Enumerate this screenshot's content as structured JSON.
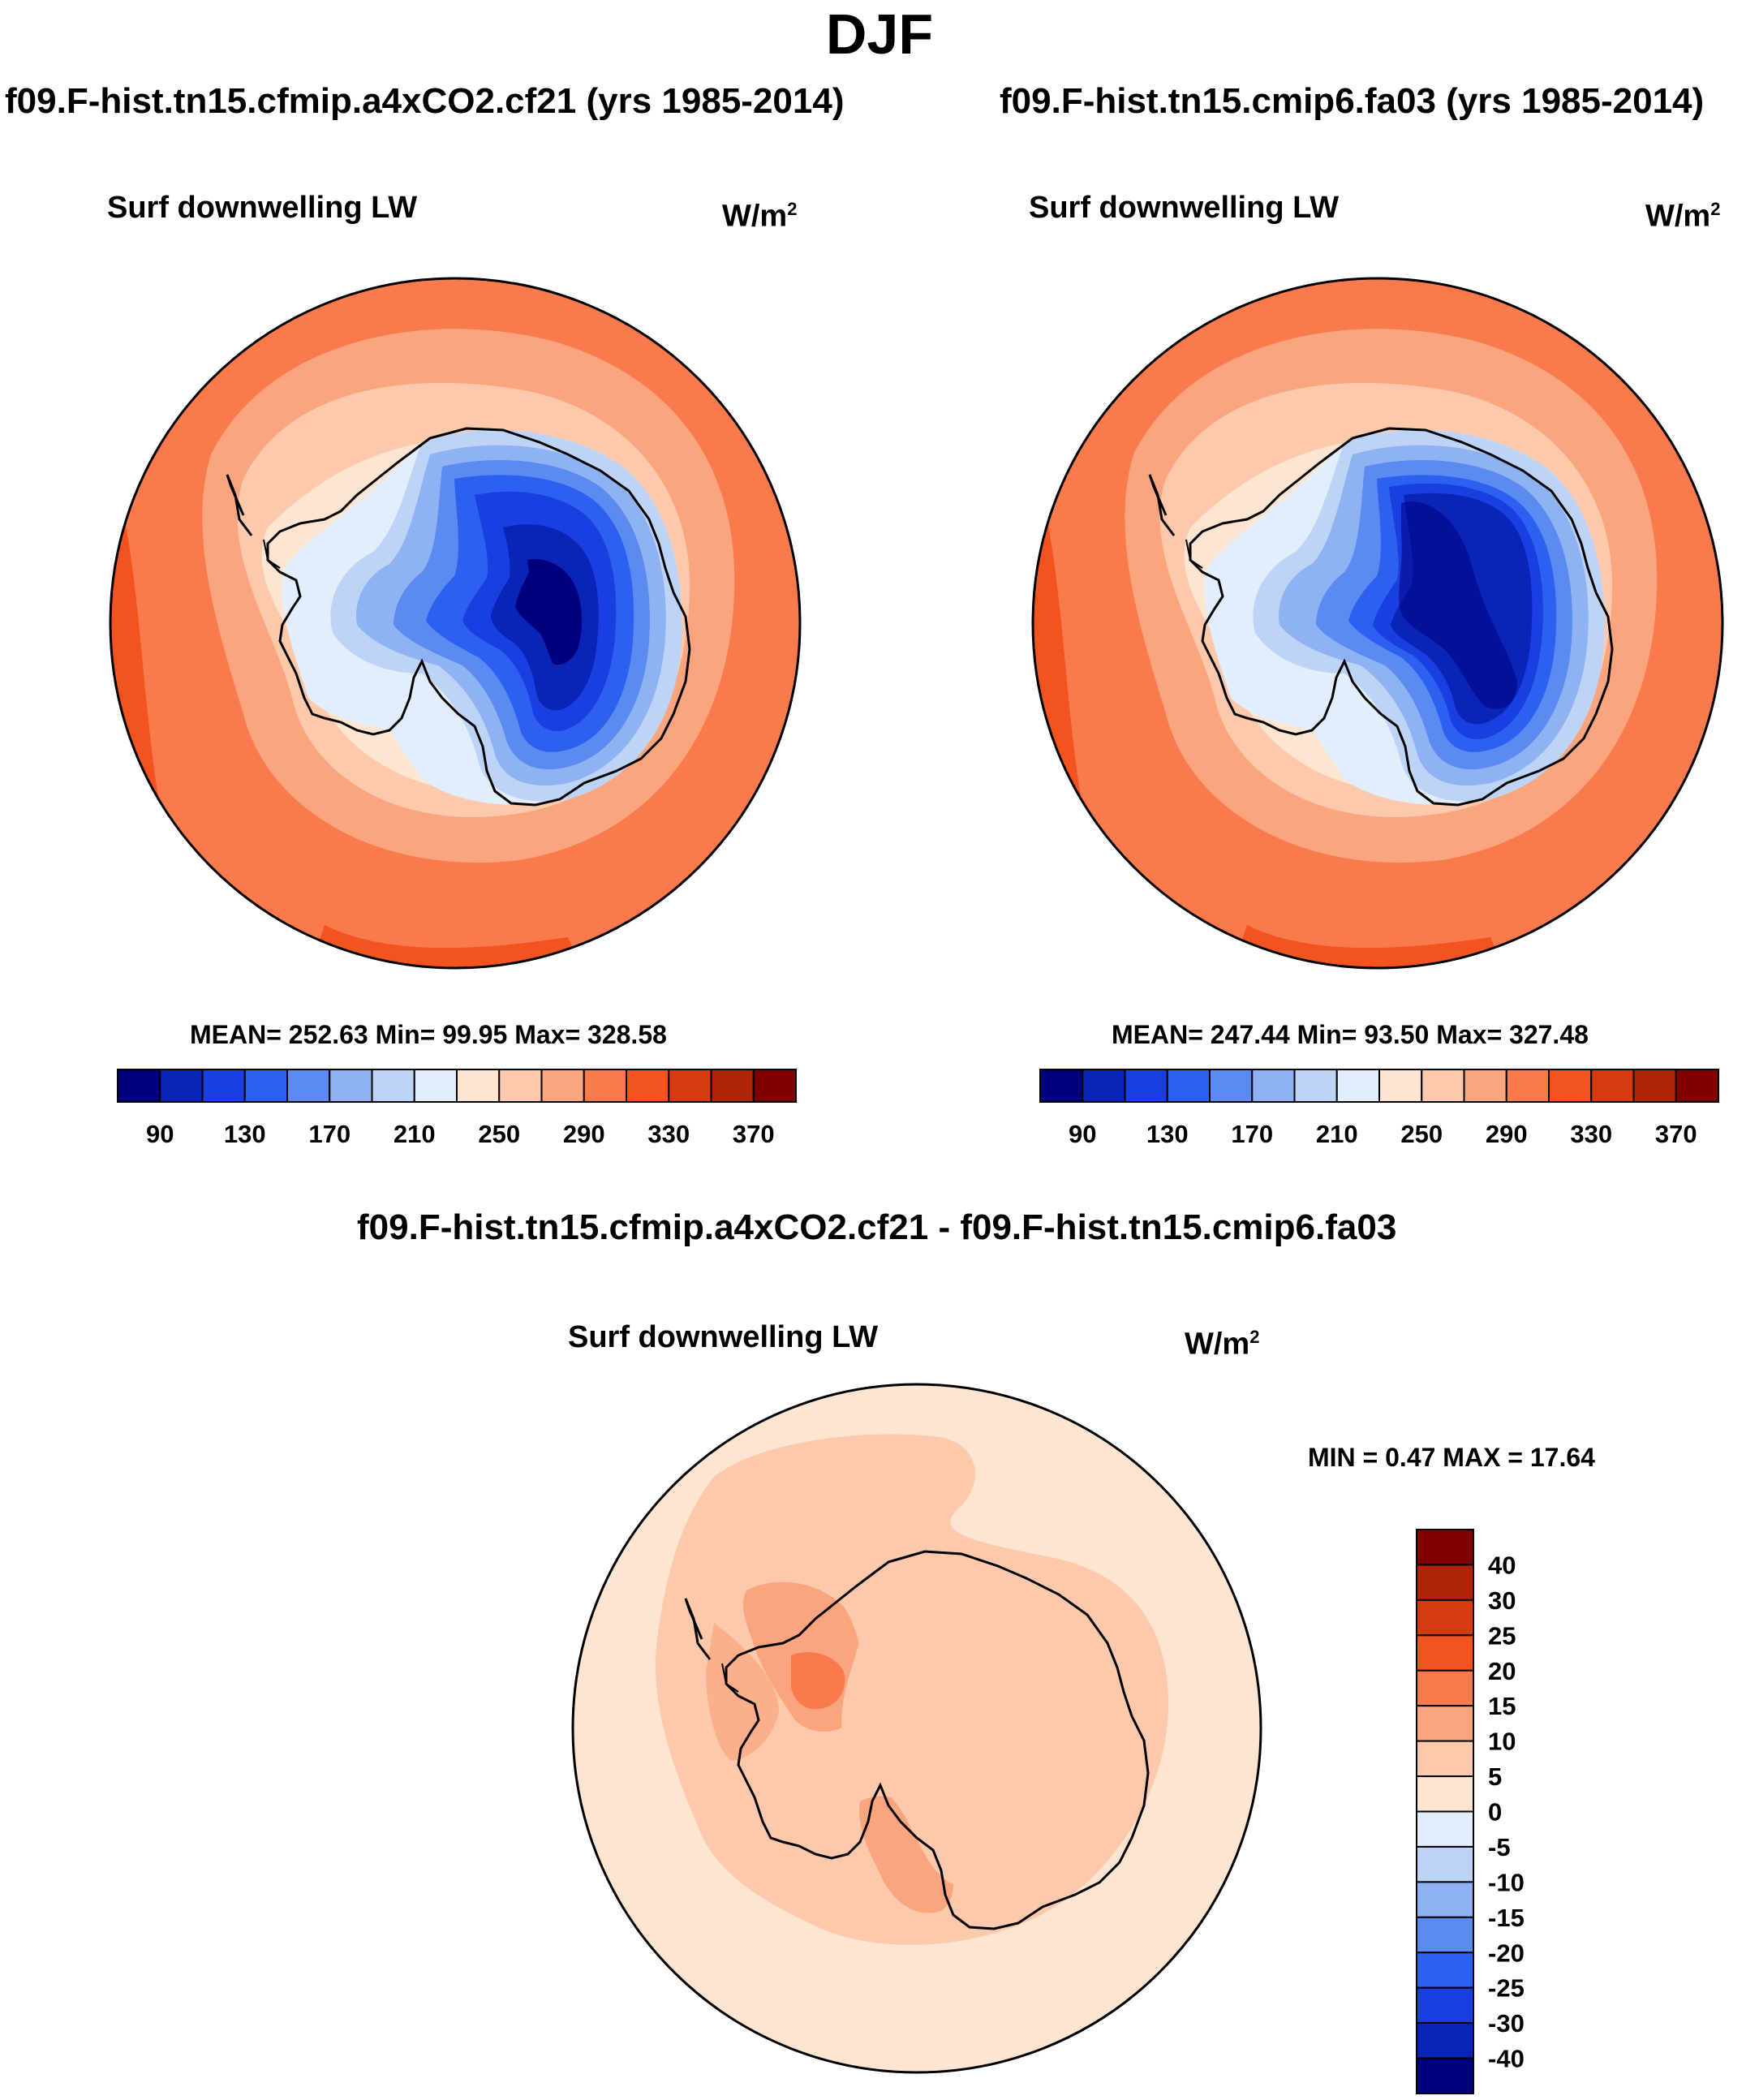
{
  "title": "DJF",
  "panels": [
    {
      "case_title": "f09.F-hist.tn15.cfmip.a4xCO2.cf21 (yrs 1985-2014)",
      "variable": "Surf downwelling LW",
      "units": {
        "base": "W/m",
        "exp": "2"
      },
      "stats": "MEAN= 252.63  Min=  99.95  Max= 328.58",
      "colorbar_labels": [
        "90",
        "130",
        "170",
        "210",
        "250",
        "290",
        "330",
        "370"
      ]
    },
    {
      "case_title": "f09.F-hist.tn15.cmip6.fa03 (yrs 1985-2014)",
      "variable": "Surf downwelling LW",
      "units": {
        "base": "W/m",
        "exp": "2"
      },
      "stats": "MEAN= 247.44  Min=  93.50  Max= 327.48",
      "colorbar_labels": [
        "90",
        "130",
        "170",
        "210",
        "250",
        "290",
        "330",
        "370"
      ]
    }
  ],
  "difference": {
    "title": "f09.F-hist.tn15.cfmip.a4xCO2.cf21 - f09.F-hist.tn15.cmip6.fa03",
    "variable": "Surf downwelling LW",
    "units": {
      "base": "W/m",
      "exp": "2"
    },
    "stats": "MIN =   0.47 MAX =  17.64",
    "colorbar_labels": [
      "40",
      "30",
      "25",
      "20",
      "15",
      "10",
      "5",
      "0",
      "-5",
      "-10",
      "-15",
      "-20",
      "-25",
      "-30",
      "-40"
    ]
  },
  "colors": {
    "abs_scale": [
      "#00007f",
      "#0a24b8",
      "#1a3fe0",
      "#2d60f0",
      "#5b8af0",
      "#8fb2f2",
      "#bed4f7",
      "#e2eefb",
      "#fde5d2",
      "#fcc9ac",
      "#fba57e",
      "#f97a4c",
      "#f2531f",
      "#d63a10",
      "#b0250a",
      "#7f0000"
    ],
    "diff_scale": [
      "#7f0000",
      "#b0250a",
      "#d63a10",
      "#f2531f",
      "#f97a4c",
      "#fba57e",
      "#fcc9ac",
      "#fde5d2",
      "#e2eefb",
      "#bed4f7",
      "#8fb2f2",
      "#5b8af0",
      "#2d60f0",
      "#1a3fe0",
      "#0a24b8",
      "#00007f"
    ]
  }
}
